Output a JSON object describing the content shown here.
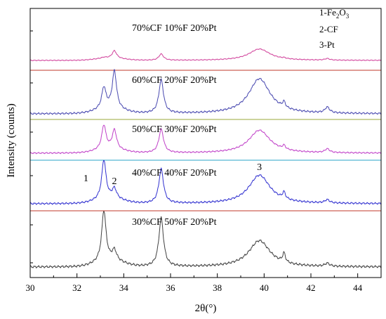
{
  "chart_data": {
    "type": "line",
    "xlabel": "2θ(°)",
    "ylabel": "Intensity (counts)",
    "xlim": [
      30,
      45
    ],
    "xticks": [
      30,
      32,
      34,
      36,
      38,
      40,
      42,
      44
    ],
    "grid": false,
    "legend": {
      "placement": "top-right",
      "items": [
        {
          "num": "1-",
          "base": "Fe",
          "sub1": "2",
          "mid": "O",
          "sub2": "3"
        },
        {
          "num": "2-",
          "base": "CF",
          "sub1": "",
          "mid": "",
          "sub2": ""
        },
        {
          "num": "3-",
          "base": "Pt",
          "sub1": "",
          "mid": "",
          "sub2": ""
        }
      ]
    },
    "peak_labels": [
      {
        "text": "1",
        "x": 32.8
      },
      {
        "text": "2",
        "x": 33.6
      },
      {
        "text": "3",
        "x": 39.8
      }
    ],
    "baseline_colors": [
      "#c0392b",
      "#9aaa3a",
      "#2aa6c8",
      "#c0392b"
    ],
    "peak_centers": [
      {
        "id": "1-Fe2O3",
        "x": 33.15
      },
      {
        "id": "2-CF",
        "x": 33.6
      },
      {
        "id": "CF",
        "x": 35.6
      },
      {
        "id": "3-Pt",
        "x": 39.8
      },
      {
        "id": "Pt-small",
        "x": 40.85
      },
      {
        "id": "Pt-hkl",
        "x": 42.7
      }
    ],
    "series": [
      {
        "name": "70%CF 10%F 20%Pt",
        "color": "#d0409a",
        "peak_heights": [
          0.04,
          0.38,
          0.32,
          0.58,
          0.04,
          0.08
        ]
      },
      {
        "name": "60%CF 20%F 20%Pt",
        "color": "#4848b0",
        "peak_heights": [
          0.52,
          0.92,
          0.82,
          0.86,
          0.14,
          0.14
        ]
      },
      {
        "name": "50%CF 30%F 20%Pt",
        "color": "#c040c8",
        "peak_heights": [
          0.78,
          0.62,
          0.76,
          0.74,
          0.12,
          0.12
        ]
      },
      {
        "name": "40%CF 40%F 20%Pt",
        "color": "#3030d0",
        "peak_heights": [
          0.96,
          0.24,
          0.84,
          0.7,
          0.16,
          0.08
        ]
      },
      {
        "name": "30%CF 50%F 20%Pt",
        "color": "#404040",
        "peak_heights": [
          1.0,
          0.2,
          0.96,
          0.52,
          0.18,
          0.06
        ]
      }
    ]
  }
}
